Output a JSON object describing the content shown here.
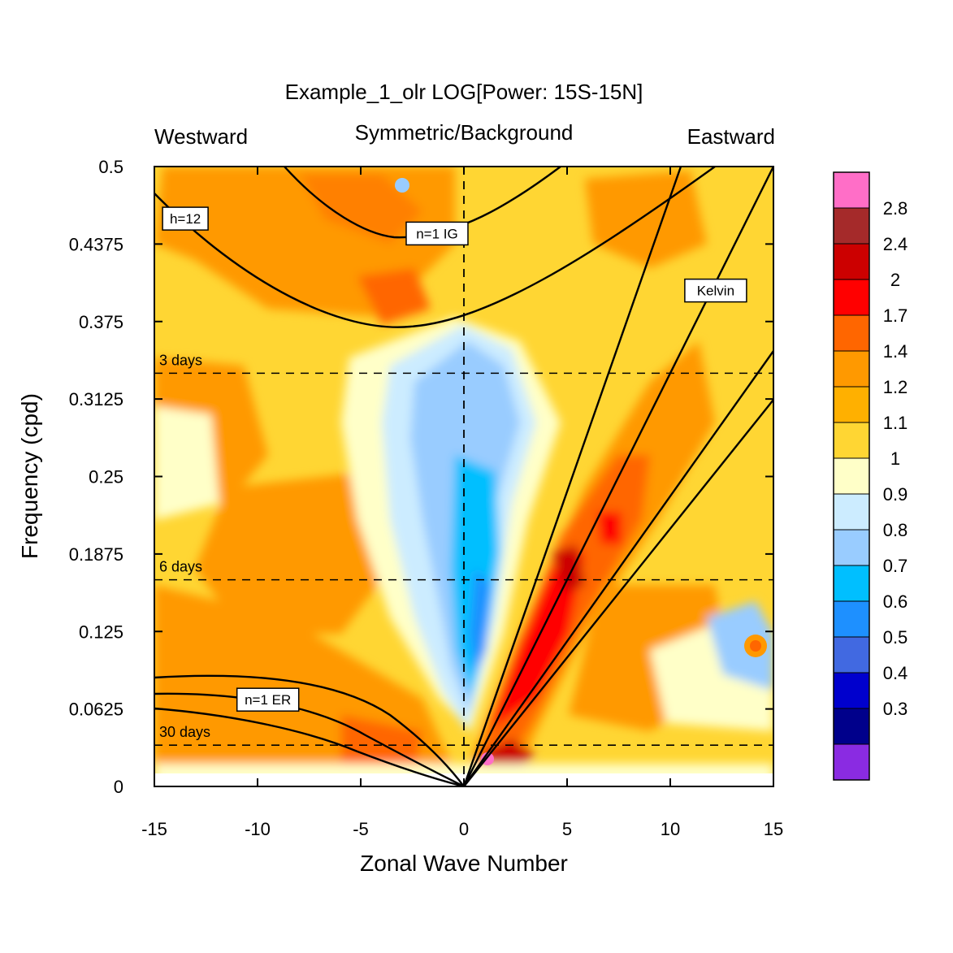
{
  "chart_data": {
    "type": "heatmap",
    "title": "Example_1_olr LOG[Power: 15S-15N]",
    "subtitle_left": "Westward",
    "subtitle_center": "Symmetric/Background",
    "subtitle_right": "Eastward",
    "xlabel": "Zonal Wave Number",
    "ylabel": "Frequency (cpd)",
    "xlim": [
      -15,
      15
    ],
    "ylim": [
      0,
      0.5
    ],
    "xticks": [
      -15,
      -10,
      -5,
      0,
      5,
      10,
      15
    ],
    "xtick_labels": [
      "-15",
      "-10",
      "-5",
      "0",
      "5",
      "10",
      "15"
    ],
    "yticks": [
      0,
      0.0625,
      0.125,
      0.1875,
      0.25,
      0.3125,
      0.375,
      0.4375,
      0.5
    ],
    "ytick_labels": [
      "0",
      "0.0625",
      "0.125",
      "0.1875",
      "0.25",
      "0.3125",
      "0.375",
      "0.4375",
      "0.5"
    ],
    "period_lines": [
      {
        "label": "3 days",
        "frequency": 0.3333
      },
      {
        "label": "6 days",
        "frequency": 0.1667
      },
      {
        "label": "30 days",
        "frequency": 0.0333
      }
    ],
    "curve_labels": [
      {
        "label": "h=12",
        "x": -13.5,
        "y": 0.458
      },
      {
        "label": "n=1 IG",
        "x": -1.3,
        "y": 0.446
      },
      {
        "label": "Kelvin",
        "x": 12.2,
        "y": 0.4
      },
      {
        "label": "n=1 ER",
        "x": -9.5,
        "y": 0.07
      }
    ],
    "colorbar": {
      "labels": [
        "2.8",
        "2.4",
        "2",
        "1.7",
        "1.4",
        "1.2",
        "1.1",
        "1",
        "0.9",
        "0.8",
        "0.7",
        "0.6",
        "0.5",
        "0.4",
        "0.3"
      ],
      "colors": [
        "#ff6ec7",
        "#a52a2a",
        "#cc0000",
        "#ff0000",
        "#ff6600",
        "#ff9900",
        "#ffb000",
        "#ffd633",
        "#ffffc8",
        "#ccecff",
        "#99ccff",
        "#00bfff",
        "#1e90ff",
        "#4169e1",
        "#0000cd",
        "#00008b",
        "#8a2be2"
      ]
    },
    "grid": false,
    "legend": "right colorbar"
  }
}
